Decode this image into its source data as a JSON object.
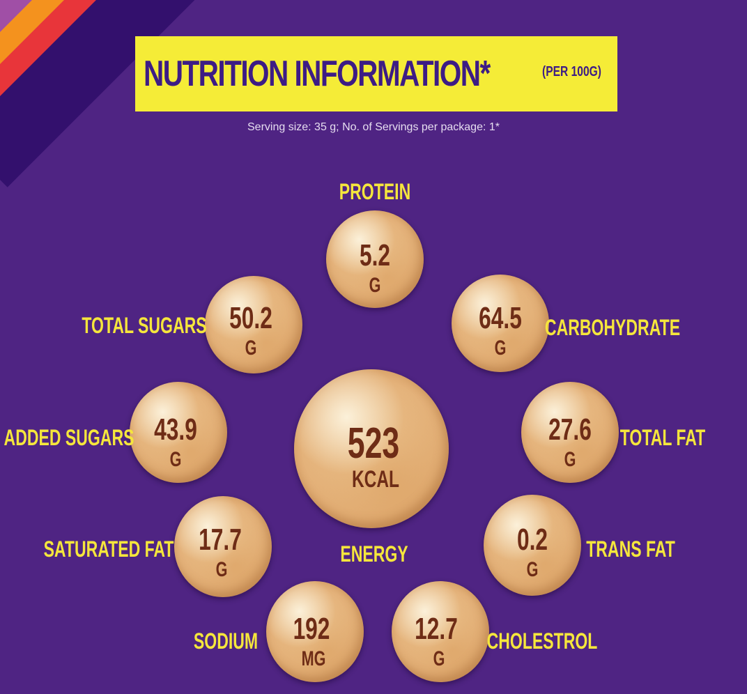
{
  "colors": {
    "background": "#4f2483",
    "header_bg": "#f5ec37",
    "header_text": "#3d1c85",
    "label_text": "#f5e63c",
    "value_text": "#6e2c16",
    "stripe_colors": [
      "#a04fa6",
      "#f4921e",
      "#e8353a",
      "#33106d"
    ]
  },
  "header": {
    "title": "NUTRITION INFORMATION*",
    "subtitle": "(PER 100G)"
  },
  "serving_info": "Serving size: 35 g; No. of Servings per package: 1*",
  "nutrients": [
    {
      "id": "protein",
      "label": "PROTEIN",
      "value": "5.2",
      "unit": "G"
    },
    {
      "id": "total-sugars",
      "label": "TOTAL SUGARS",
      "value": "50.2",
      "unit": "G"
    },
    {
      "id": "carbohydrate",
      "label": "CARBOHYDRATE",
      "value": "64.5",
      "unit": "G"
    },
    {
      "id": "added-sugars",
      "label": "ADDED SUGARS",
      "value": "43.9",
      "unit": "G"
    },
    {
      "id": "energy",
      "label": "ENERGY",
      "value": "523",
      "unit": "KCAL"
    },
    {
      "id": "total-fat",
      "label": "TOTAL FAT",
      "value": "27.6",
      "unit": "G"
    },
    {
      "id": "saturated-fat",
      "label": "SATURATED FAT",
      "value": "17.7",
      "unit": "G"
    },
    {
      "id": "trans-fat",
      "label": "TRANS FAT",
      "value": "0.2",
      "unit": "G"
    },
    {
      "id": "sodium",
      "label": "SODIUM",
      "value": "192",
      "unit": "MG"
    },
    {
      "id": "cholestrol",
      "label": "CHOLESTROL",
      "value": "12.7",
      "unit": "G"
    }
  ]
}
